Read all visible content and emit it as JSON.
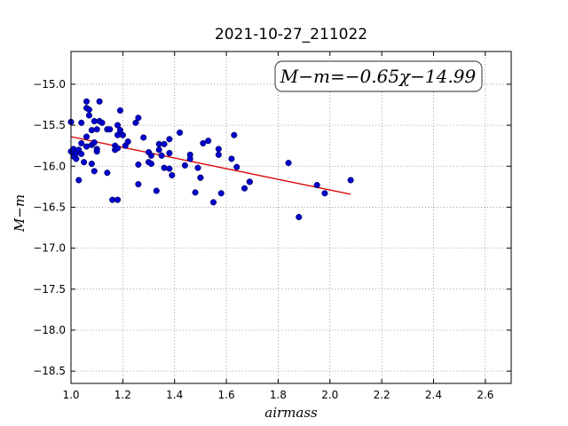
{
  "chart_data": {
    "type": "scatter",
    "title": "2021-10-27_211022",
    "xlabel": "airmass",
    "ylabel": "M−m",
    "xlim": [
      1.0,
      2.7
    ],
    "ylim": [
      -18.65,
      -14.6
    ],
    "y_inverted": true,
    "grid": true,
    "xticks": [
      "1.0",
      "1.2",
      "1.4",
      "1.6",
      "1.8",
      "2.0",
      "2.2",
      "2.4",
      "2.6"
    ],
    "yticks": [
      "−15.0",
      "−15.5",
      "−16.0",
      "−16.5",
      "−17.0",
      "−17.5",
      "−18.0",
      "−18.5"
    ],
    "annotation": "M−m=−0.65χ−14.99",
    "marker_color": "#0000cc",
    "fit_color": "#dd0000",
    "fit": {
      "slope": -0.65,
      "intercept": -14.99,
      "x_range": [
        1.0,
        2.08
      ]
    },
    "points": [
      {
        "x": 1.0,
        "y": -15.46
      },
      {
        "x": 1.0,
        "y": -15.82
      },
      {
        "x": 1.01,
        "y": -15.88
      },
      {
        "x": 1.01,
        "y": -15.79
      },
      {
        "x": 1.02,
        "y": -15.84
      },
      {
        "x": 1.02,
        "y": -15.91
      },
      {
        "x": 1.03,
        "y": -16.17
      },
      {
        "x": 1.03,
        "y": -15.8
      },
      {
        "x": 1.04,
        "y": -15.47
      },
      {
        "x": 1.04,
        "y": -15.72
      },
      {
        "x": 1.04,
        "y": -15.85
      },
      {
        "x": 1.05,
        "y": -15.95
      },
      {
        "x": 1.06,
        "y": -15.21
      },
      {
        "x": 1.06,
        "y": -15.29
      },
      {
        "x": 1.06,
        "y": -15.64
      },
      {
        "x": 1.06,
        "y": -15.76
      },
      {
        "x": 1.07,
        "y": -15.31
      },
      {
        "x": 1.07,
        "y": -15.38
      },
      {
        "x": 1.08,
        "y": -15.56
      },
      {
        "x": 1.08,
        "y": -15.74
      },
      {
        "x": 1.08,
        "y": -15.97
      },
      {
        "x": 1.09,
        "y": -15.45
      },
      {
        "x": 1.09,
        "y": -15.71
      },
      {
        "x": 1.09,
        "y": -16.06
      },
      {
        "x": 1.1,
        "y": -15.55
      },
      {
        "x": 1.1,
        "y": -15.79
      },
      {
        "x": 1.1,
        "y": -15.82
      },
      {
        "x": 1.11,
        "y": -15.21
      },
      {
        "x": 1.11,
        "y": -15.45
      },
      {
        "x": 1.12,
        "y": -15.47
      },
      {
        "x": 1.14,
        "y": -15.55
      },
      {
        "x": 1.14,
        "y": -16.08
      },
      {
        "x": 1.15,
        "y": -15.55
      },
      {
        "x": 1.16,
        "y": -16.41
      },
      {
        "x": 1.17,
        "y": -15.75
      },
      {
        "x": 1.17,
        "y": -15.8
      },
      {
        "x": 1.18,
        "y": -15.5
      },
      {
        "x": 1.18,
        "y": -15.62
      },
      {
        "x": 1.18,
        "y": -15.78
      },
      {
        "x": 1.18,
        "y": -16.41
      },
      {
        "x": 1.19,
        "y": -15.32
      },
      {
        "x": 1.19,
        "y": -15.56
      },
      {
        "x": 1.2,
        "y": -15.62
      },
      {
        "x": 1.21,
        "y": -15.75
      },
      {
        "x": 1.22,
        "y": -15.7
      },
      {
        "x": 1.25,
        "y": -15.47
      },
      {
        "x": 1.26,
        "y": -15.41
      },
      {
        "x": 1.26,
        "y": -15.98
      },
      {
        "x": 1.26,
        "y": -16.22
      },
      {
        "x": 1.28,
        "y": -15.65
      },
      {
        "x": 1.3,
        "y": -15.83
      },
      {
        "x": 1.3,
        "y": -15.95
      },
      {
        "x": 1.31,
        "y": -15.97
      },
      {
        "x": 1.31,
        "y": -15.87
      },
      {
        "x": 1.33,
        "y": -16.3
      },
      {
        "x": 1.34,
        "y": -15.8
      },
      {
        "x": 1.34,
        "y": -15.73
      },
      {
        "x": 1.35,
        "y": -15.87
      },
      {
        "x": 1.36,
        "y": -15.73
      },
      {
        "x": 1.36,
        "y": -16.02
      },
      {
        "x": 1.38,
        "y": -15.67
      },
      {
        "x": 1.38,
        "y": -15.84
      },
      {
        "x": 1.38,
        "y": -16.03
      },
      {
        "x": 1.39,
        "y": -16.11
      },
      {
        "x": 1.42,
        "y": -15.59
      },
      {
        "x": 1.44,
        "y": -15.99
      },
      {
        "x": 1.46,
        "y": -15.86
      },
      {
        "x": 1.46,
        "y": -15.91
      },
      {
        "x": 1.48,
        "y": -16.32
      },
      {
        "x": 1.49,
        "y": -16.02
      },
      {
        "x": 1.5,
        "y": -16.14
      },
      {
        "x": 1.5,
        "y": -16.14
      },
      {
        "x": 1.51,
        "y": -15.72
      },
      {
        "x": 1.53,
        "y": -15.69
      },
      {
        "x": 1.55,
        "y": -16.44
      },
      {
        "x": 1.57,
        "y": -15.79
      },
      {
        "x": 1.57,
        "y": -15.86
      },
      {
        "x": 1.58,
        "y": -16.33
      },
      {
        "x": 1.62,
        "y": -15.91
      },
      {
        "x": 1.63,
        "y": -15.62
      },
      {
        "x": 1.64,
        "y": -16.01
      },
      {
        "x": 1.67,
        "y": -16.27
      },
      {
        "x": 1.69,
        "y": -16.19
      },
      {
        "x": 1.69,
        "y": -16.19
      },
      {
        "x": 1.84,
        "y": -15.96
      },
      {
        "x": 1.88,
        "y": -16.62
      },
      {
        "x": 1.95,
        "y": -16.23
      },
      {
        "x": 1.98,
        "y": -16.33
      },
      {
        "x": 2.08,
        "y": -16.17
      }
    ]
  }
}
